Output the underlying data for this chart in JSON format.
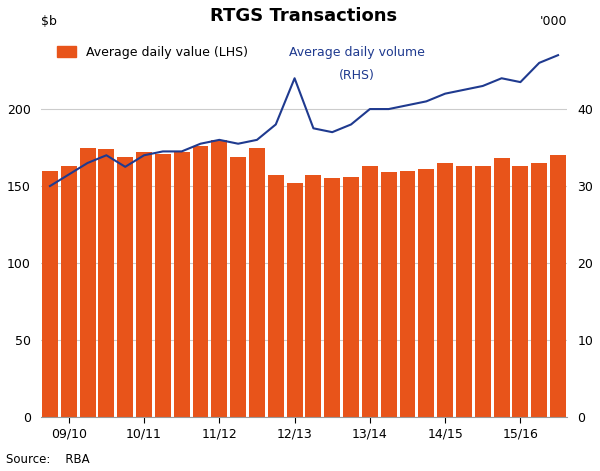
{
  "title": "RTGS Transactions",
  "bar_color": "#E8541A",
  "line_color": "#1F3A8F",
  "bar_label": "Average daily value (LHS)",
  "line_label_part1": "Average daily volume",
  "line_label_part2": "(RHS)",
  "ylabel_right": "'000",
  "source": "Source:    RBA",
  "xlabels": [
    "09/10",
    "10/11",
    "11/12",
    "12/13",
    "13/14",
    "14/15",
    "15/16"
  ],
  "xtick_positions": [
    1,
    5,
    9,
    13,
    17,
    21,
    25
  ],
  "ylim_left": [
    0,
    250
  ],
  "ylim_right": [
    0,
    50
  ],
  "yticks_left": [
    0,
    50,
    100,
    150,
    200
  ],
  "yticks_right": [
    0,
    10,
    20,
    30,
    40
  ],
  "bar_values": [
    160,
    163,
    175,
    174,
    169,
    172,
    171,
    172,
    176,
    180,
    169,
    175,
    157,
    152,
    157,
    155,
    156,
    163,
    159,
    160,
    161,
    165,
    163,
    163,
    168,
    163,
    165,
    170
  ],
  "line_values": [
    30,
    31.5,
    33,
    34,
    32.5,
    34,
    34.5,
    34.5,
    35.5,
    36,
    35.5,
    36,
    38,
    44,
    37.5,
    37,
    38,
    40,
    40,
    40.5,
    41,
    42,
    42.5,
    43,
    44,
    43.5,
    46,
    47
  ],
  "n_bars": 28,
  "background_color": "#ffffff",
  "grid_color": "#cccccc"
}
